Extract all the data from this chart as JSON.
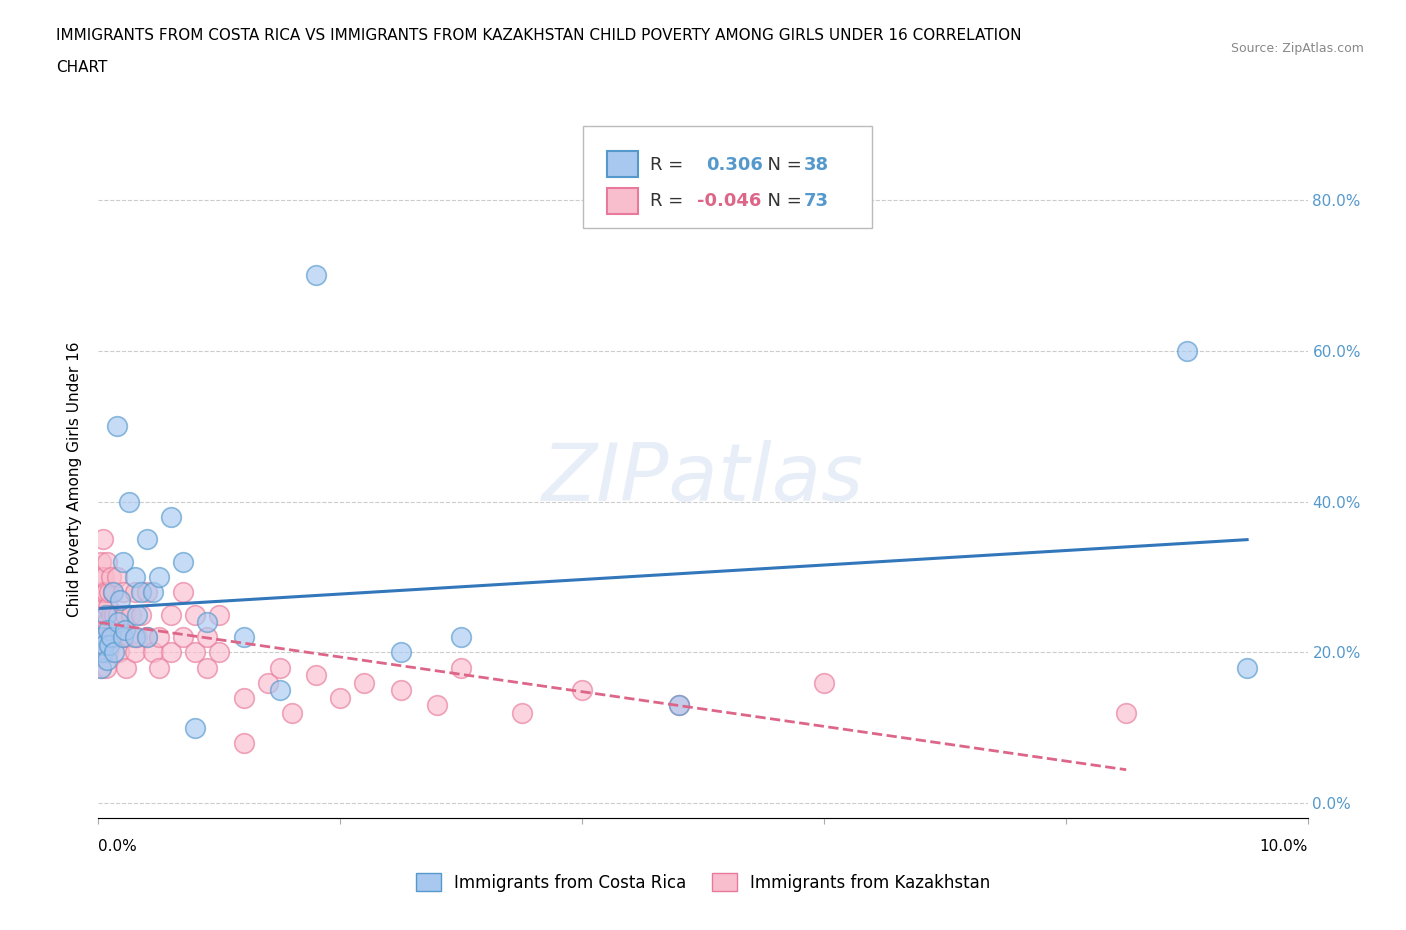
{
  "title_line1": "IMMIGRANTS FROM COSTA RICA VS IMMIGRANTS FROM KAZAKHSTAN CHILD POVERTY AMONG GIRLS UNDER 16 CORRELATION",
  "title_line2": "CHART",
  "source": "Source: ZipAtlas.com",
  "ylabel": "Child Poverty Among Girls Under 16",
  "xlim": [
    0.0,
    0.1
  ],
  "ylim": [
    -0.02,
    0.88
  ],
  "yticks": [
    0.0,
    0.2,
    0.4,
    0.6,
    0.8
  ],
  "yticklabels": [
    "0.0%",
    "20.0%",
    "40.0%",
    "60.0%",
    "80.0%"
  ],
  "watermark": "ZIPatlas",
  "color_cr": "#a8c8f0",
  "color_kz": "#f9bece",
  "edge_color_cr": "#5599cc",
  "edge_color_kz": "#e8799a",
  "line_color_cr": "#3377bb",
  "line_color_kz": "#dd6688",
  "grid_color": "#cccccc",
  "background_color": "#ffffff",
  "right_tick_color": "#5599cc",
  "costa_rica_x": [
    0.0002,
    0.0003,
    0.0004,
    0.0005,
    0.0006,
    0.0007,
    0.0008,
    0.0009,
    0.001,
    0.0012,
    0.0013,
    0.0015,
    0.0016,
    0.0018,
    0.002,
    0.002,
    0.0022,
    0.0025,
    0.003,
    0.003,
    0.0032,
    0.0035,
    0.004,
    0.004,
    0.0045,
    0.005,
    0.006,
    0.007,
    0.008,
    0.009,
    0.012,
    0.015,
    0.018,
    0.025,
    0.03,
    0.048,
    0.09,
    0.095
  ],
  "costa_rica_y": [
    0.18,
    0.22,
    0.2,
    0.21,
    0.25,
    0.19,
    0.23,
    0.21,
    0.22,
    0.28,
    0.2,
    0.5,
    0.24,
    0.27,
    0.32,
    0.22,
    0.23,
    0.4,
    0.3,
    0.22,
    0.25,
    0.28,
    0.22,
    0.35,
    0.28,
    0.3,
    0.38,
    0.32,
    0.1,
    0.24,
    0.22,
    0.15,
    0.7,
    0.2,
    0.22,
    0.13,
    0.6,
    0.18
  ],
  "kazakhstan_x": [
    0.0001,
    0.0001,
    0.0002,
    0.0002,
    0.0002,
    0.0003,
    0.0003,
    0.0003,
    0.0004,
    0.0004,
    0.0004,
    0.0005,
    0.0005,
    0.0005,
    0.0006,
    0.0006,
    0.0007,
    0.0007,
    0.0008,
    0.0008,
    0.0009,
    0.0009,
    0.001,
    0.001,
    0.0011,
    0.0012,
    0.0013,
    0.0014,
    0.0015,
    0.0016,
    0.0017,
    0.0018,
    0.002,
    0.002,
    0.0022,
    0.0023,
    0.0025,
    0.0027,
    0.003,
    0.003,
    0.0032,
    0.0035,
    0.004,
    0.004,
    0.0045,
    0.005,
    0.005,
    0.006,
    0.006,
    0.007,
    0.007,
    0.008,
    0.008,
    0.009,
    0.009,
    0.01,
    0.01,
    0.012,
    0.012,
    0.014,
    0.015,
    0.016,
    0.018,
    0.02,
    0.022,
    0.025,
    0.028,
    0.03,
    0.035,
    0.04,
    0.048,
    0.06,
    0.085
  ],
  "kazakhstan_y": [
    0.2,
    0.28,
    0.18,
    0.24,
    0.32,
    0.26,
    0.22,
    0.3,
    0.28,
    0.2,
    0.35,
    0.22,
    0.3,
    0.25,
    0.28,
    0.18,
    0.32,
    0.24,
    0.26,
    0.2,
    0.28,
    0.22,
    0.25,
    0.3,
    0.22,
    0.28,
    0.25,
    0.22,
    0.3,
    0.25,
    0.2,
    0.22,
    0.28,
    0.22,
    0.25,
    0.18,
    0.22,
    0.25,
    0.2,
    0.28,
    0.22,
    0.25,
    0.28,
    0.22,
    0.2,
    0.18,
    0.22,
    0.2,
    0.25,
    0.22,
    0.28,
    0.2,
    0.25,
    0.22,
    0.18,
    0.2,
    0.25,
    0.08,
    0.14,
    0.16,
    0.18,
    0.12,
    0.17,
    0.14,
    0.16,
    0.15,
    0.13,
    0.18,
    0.12,
    0.15,
    0.13,
    0.16,
    0.12
  ]
}
